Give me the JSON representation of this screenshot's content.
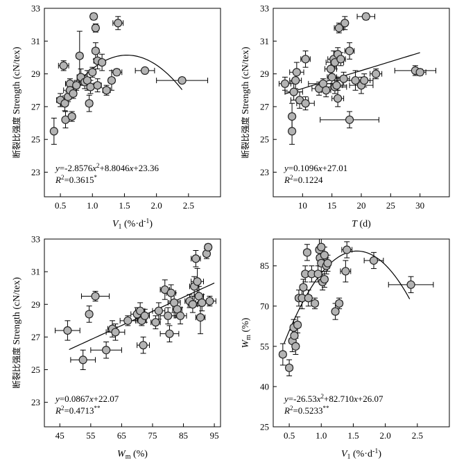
{
  "style": {
    "marker_fill": "#b3b3b3",
    "marker_stroke": "#222222",
    "line_color": "#000000"
  },
  "chart_data": [
    {
      "id": "a",
      "type": "scatter",
      "xlabel": {
        "main": "V",
        "sub": "1",
        "unit": " (%·d",
        "sup": "-1",
        "close": ")"
      },
      "ylabel": {
        "cn": "断裂比强度",
        "en": " Strength (cN/tex)"
      },
      "xlim": [
        0.25,
        3.0
      ],
      "ylim": [
        21.5,
        33.0
      ],
      "xticks": [
        0.5,
        1.0,
        1.5,
        2.0,
        2.5
      ],
      "xtick_labels": [
        "0.5",
        "1.0",
        "1.5",
        "2.0",
        "2.5"
      ],
      "yticks": [
        23,
        25,
        27,
        29,
        31,
        33
      ],
      "ytick_labels": [
        "23",
        "25",
        "27",
        "29",
        "31",
        "33"
      ],
      "equation_lines": [
        [
          {
            "t": "y",
            "i": true
          },
          {
            "t": "=-2.8576"
          },
          {
            "t": "x",
            "i": true
          },
          {
            "t": "2",
            "sup": true
          },
          {
            "t": "+8.8046"
          },
          {
            "t": "x",
            "i": true
          },
          {
            "t": "+23.36"
          }
        ],
        [
          {
            "t": "R",
            "i": true
          },
          {
            "t": "2",
            "sup": true
          },
          {
            "t": "=0.3615"
          },
          {
            "t": "*",
            "sup": true
          }
        ]
      ],
      "fit": {
        "kind": "poly2",
        "coef": [
          23.36,
          8.8046,
          -2.8576
        ],
        "x_range": [
          0.5,
          2.4
        ]
      },
      "points": [
        {
          "x": 0.4,
          "y": 25.5,
          "ex": 0.0,
          "ey": 0.8
        },
        {
          "x": 0.5,
          "y": 27.4,
          "ex": 0.06,
          "ey": 0.4
        },
        {
          "x": 0.55,
          "y": 29.5,
          "ex": 0.08,
          "ey": 0.3
        },
        {
          "x": 0.57,
          "y": 27.2,
          "ex": 0.05,
          "ey": 0.45
        },
        {
          "x": 0.58,
          "y": 26.2,
          "ex": 0.0,
          "ey": 0.5
        },
        {
          "x": 0.62,
          "y": 27.6,
          "ex": 0.05,
          "ey": 0.3
        },
        {
          "x": 0.65,
          "y": 28.4,
          "ex": 0.07,
          "ey": 0.3
        },
        {
          "x": 0.65,
          "y": 28.0,
          "ex": 0.1,
          "ey": 0.4
        },
        {
          "x": 0.68,
          "y": 26.4,
          "ex": 0.05,
          "ey": 0.3
        },
        {
          "x": 0.7,
          "y": 27.8,
          "ex": 0.05,
          "ey": 0.3
        },
        {
          "x": 0.75,
          "y": 28.3,
          "ex": 0.05,
          "ey": 0.3
        },
        {
          "x": 0.8,
          "y": 30.1,
          "ex": 0.05,
          "ey": 1.5
        },
        {
          "x": 0.82,
          "y": 28.8,
          "ex": 0.06,
          "ey": 0.5
        },
        {
          "x": 0.88,
          "y": 28.5,
          "ex": 0.08,
          "ey": 0.4
        },
        {
          "x": 0.92,
          "y": 28.6,
          "ex": 0.05,
          "ey": 0.6
        },
        {
          "x": 0.95,
          "y": 27.2,
          "ex": 0.05,
          "ey": 0.5
        },
        {
          "x": 0.97,
          "y": 28.2,
          "ex": 0.05,
          "ey": 0.4
        },
        {
          "x": 1.0,
          "y": 29.1,
          "ex": 0.05,
          "ey": 0.3
        },
        {
          "x": 1.02,
          "y": 32.5,
          "ex": 0.05,
          "ey": 0.2
        },
        {
          "x": 1.05,
          "y": 31.8,
          "ex": 0.05,
          "ey": 0.25
        },
        {
          "x": 1.05,
          "y": 30.4,
          "ex": 0.05,
          "ey": 0.5
        },
        {
          "x": 1.08,
          "y": 29.8,
          "ex": 0.06,
          "ey": 0.5
        },
        {
          "x": 1.08,
          "y": 28.3,
          "ex": 0.06,
          "ey": 0.4
        },
        {
          "x": 1.15,
          "y": 29.7,
          "ex": 0.05,
          "ey": 0.5
        },
        {
          "x": 1.22,
          "y": 28.0,
          "ex": 0.06,
          "ey": 0.3
        },
        {
          "x": 1.3,
          "y": 28.6,
          "ex": 0.05,
          "ey": 0.6
        },
        {
          "x": 1.38,
          "y": 29.1,
          "ex": 0.08,
          "ey": 0.2
        },
        {
          "x": 1.4,
          "y": 32.1,
          "ex": 0.08,
          "ey": 0.4
        },
        {
          "x": 1.82,
          "y": 29.2,
          "ex": 0.15,
          "ey": 0.15
        },
        {
          "x": 2.4,
          "y": 28.6,
          "ex": 0.4,
          "ey": 0.0
        }
      ]
    },
    {
      "id": "b",
      "type": "scatter",
      "xlabel": {
        "main": "T",
        "sub": "",
        "unit": " (d",
        "sup": "",
        "close": ")"
      },
      "ylabel": {
        "cn": "断裂比强度",
        "en": " Strength (cN/tex)"
      },
      "xlim": [
        5.0,
        35.0
      ],
      "ylim": [
        21.5,
        33.0
      ],
      "xticks": [
        10,
        15,
        20,
        25,
        30
      ],
      "xtick_labels": [
        "10",
        "15",
        "20",
        "25",
        "30"
      ],
      "yticks": [
        23,
        25,
        27,
        29,
        31,
        33
      ],
      "ytick_labels": [
        "23",
        "25",
        "27",
        "29",
        "31",
        "33"
      ],
      "equation_lines": [
        [
          {
            "t": "y",
            "i": true
          },
          {
            "t": "=0.1096"
          },
          {
            "t": "x",
            "i": true
          },
          {
            "t": "+27.01"
          }
        ],
        [
          {
            "t": "R",
            "i": true
          },
          {
            "t": "2",
            "sup": true
          },
          {
            "t": "=0.1224"
          }
        ]
      ],
      "fit": {
        "kind": "poly2",
        "coef": [
          27.01,
          0.1096,
          0
        ],
        "x_range": [
          7.0,
          30.0
        ]
      },
      "points": [
        {
          "x": 7.0,
          "y": 28.4,
          "ex": 1.0,
          "ey": 0.4
        },
        {
          "x": 8.2,
          "y": 26.4,
          "ex": 0.5,
          "ey": 0.8
        },
        {
          "x": 8.2,
          "y": 25.5,
          "ex": 0.5,
          "ey": 0.8
        },
        {
          "x": 8.5,
          "y": 27.9,
          "ex": 1.5,
          "ey": 0.5
        },
        {
          "x": 8.8,
          "y": 28.6,
          "ex": 1.0,
          "ey": 0.5
        },
        {
          "x": 9.0,
          "y": 29.1,
          "ex": 1.2,
          "ey": 0.6
        },
        {
          "x": 9.5,
          "y": 27.4,
          "ex": 1.5,
          "ey": 0.5
        },
        {
          "x": 10.5,
          "y": 27.2,
          "ex": 1.5,
          "ey": 0.4
        },
        {
          "x": 10.5,
          "y": 29.9,
          "ex": 0.8,
          "ey": 0.5
        },
        {
          "x": 12.8,
          "y": 28.1,
          "ex": 1.2,
          "ey": 0.4
        },
        {
          "x": 13.5,
          "y": 28.4,
          "ex": 2.5,
          "ey": 0.3
        },
        {
          "x": 14.0,
          "y": 28.0,
          "ex": 0.8,
          "ey": 0.4
        },
        {
          "x": 14.8,
          "y": 29.3,
          "ex": 1.0,
          "ey": 0.6
        },
        {
          "x": 15.0,
          "y": 28.8,
          "ex": 0.8,
          "ey": 0.4
        },
        {
          "x": 15.3,
          "y": 29.9,
          "ex": 1.0,
          "ey": 0.5
        },
        {
          "x": 15.5,
          "y": 28.2,
          "ex": 2.0,
          "ey": 0.4
        },
        {
          "x": 15.5,
          "y": 29.7,
          "ex": 1.5,
          "ey": 0.4
        },
        {
          "x": 15.8,
          "y": 28.3,
          "ex": 1.0,
          "ey": 0.3
        },
        {
          "x": 16.0,
          "y": 27.5,
          "ex": 1.0,
          "ey": 0.5
        },
        {
          "x": 16.0,
          "y": 30.2,
          "ex": 0.5,
          "ey": 0.4
        },
        {
          "x": 16.2,
          "y": 31.8,
          "ex": 0.8,
          "ey": 0.3
        },
        {
          "x": 16.5,
          "y": 29.9,
          "ex": 0.8,
          "ey": 0.4
        },
        {
          "x": 17.0,
          "y": 28.7,
          "ex": 1.0,
          "ey": 0.4
        },
        {
          "x": 17.2,
          "y": 32.1,
          "ex": 0.5,
          "ey": 0.4
        },
        {
          "x": 18.0,
          "y": 30.4,
          "ex": 0.8,
          "ey": 0.5
        },
        {
          "x": 18.0,
          "y": 26.2,
          "ex": 5.0,
          "ey": 0.5
        },
        {
          "x": 19.0,
          "y": 28.6,
          "ex": 3.0,
          "ey": 0.6
        },
        {
          "x": 20.0,
          "y": 28.3,
          "ex": 2.0,
          "ey": 0.5
        },
        {
          "x": 20.5,
          "y": 28.6,
          "ex": 1.0,
          "ey": 0.4
        },
        {
          "x": 20.8,
          "y": 32.5,
          "ex": 1.5,
          "ey": 0.2
        },
        {
          "x": 22.5,
          "y": 29.0,
          "ex": 1.0,
          "ey": 0.3
        },
        {
          "x": 29.2,
          "y": 29.2,
          "ex": 3.5,
          "ey": 0.3
        },
        {
          "x": 30.0,
          "y": 29.1,
          "ex": 1.0,
          "ey": 0.2
        }
      ]
    },
    {
      "id": "c",
      "type": "scatter",
      "xlabel": {
        "main": "W",
        "sub": "m",
        "unit": " (%",
        "sup": "",
        "close": ")"
      },
      "ylabel": {
        "cn": "断裂比强度",
        "en": " Strength (cN/tex)"
      },
      "xlim": [
        40,
        97
      ],
      "ylim": [
        21.5,
        33.0
      ],
      "xticks": [
        45,
        55,
        65,
        75,
        85,
        95
      ],
      "xtick_labels": [
        "45",
        "55",
        "65",
        "75",
        "85",
        "95"
      ],
      "yticks": [
        23,
        25,
        27,
        29,
        31,
        33
      ],
      "ytick_labels": [
        "23",
        "25",
        "27",
        "29",
        "31",
        "33"
      ],
      "equation_lines": [
        [
          {
            "t": "y",
            "i": true
          },
          {
            "t": "=0.0867"
          },
          {
            "t": "x",
            "i": true
          },
          {
            "t": "+22.07"
          }
        ],
        [
          {
            "t": "R",
            "i": true
          },
          {
            "t": "2",
            "sup": true
          },
          {
            "t": "=0.4713"
          },
          {
            "t": "**",
            "sup": true
          }
        ]
      ],
      "fit": {
        "kind": "poly2",
        "coef": [
          22.07,
          0.0867,
          0
        ],
        "x_range": [
          48.0,
          95.0
        ]
      },
      "points": [
        {
          "x": 47.5,
          "y": 27.4,
          "ex": 4.0,
          "ey": 0.6
        },
        {
          "x": 52.5,
          "y": 25.6,
          "ex": 4.0,
          "ey": 0.6
        },
        {
          "x": 54.5,
          "y": 28.4,
          "ex": 1.0,
          "ey": 0.5
        },
        {
          "x": 56.5,
          "y": 29.5,
          "ex": 4.5,
          "ey": 0.3
        },
        {
          "x": 60.0,
          "y": 26.2,
          "ex": 5.0,
          "ey": 0.5
        },
        {
          "x": 62.0,
          "y": 27.5,
          "ex": 1.5,
          "ey": 0.5
        },
        {
          "x": 63.0,
          "y": 27.3,
          "ex": 3.0,
          "ey": 0.5
        },
        {
          "x": 67.0,
          "y": 28.0,
          "ex": 2.5,
          "ey": 0.3
        },
        {
          "x": 70.0,
          "y": 28.4,
          "ex": 2.0,
          "ey": 0.4
        },
        {
          "x": 71.0,
          "y": 28.6,
          "ex": 1.5,
          "ey": 0.5
        },
        {
          "x": 71.5,
          "y": 28.0,
          "ex": 1.5,
          "ey": 0.3
        },
        {
          "x": 72.0,
          "y": 26.5,
          "ex": 2.0,
          "ey": 0.5
        },
        {
          "x": 72.5,
          "y": 28.3,
          "ex": 1.5,
          "ey": 0.4
        },
        {
          "x": 76.0,
          "y": 27.9,
          "ex": 1.5,
          "ey": 0.4
        },
        {
          "x": 77.0,
          "y": 28.6,
          "ex": 2.0,
          "ey": 0.5
        },
        {
          "x": 79.0,
          "y": 29.9,
          "ex": 1.5,
          "ey": 0.6
        },
        {
          "x": 80.0,
          "y": 28.3,
          "ex": 2.5,
          "ey": 0.5
        },
        {
          "x": 80.5,
          "y": 27.2,
          "ex": 3.0,
          "ey": 0.5
        },
        {
          "x": 81.0,
          "y": 29.7,
          "ex": 1.5,
          "ey": 0.5
        },
        {
          "x": 82.0,
          "y": 29.1,
          "ex": 2.0,
          "ey": 0.6
        },
        {
          "x": 83.0,
          "y": 28.7,
          "ex": 1.5,
          "ey": 0.5
        },
        {
          "x": 84.0,
          "y": 28.3,
          "ex": 2.0,
          "ey": 0.5
        },
        {
          "x": 87.0,
          "y": 29.2,
          "ex": 1.5,
          "ey": 0.4
        },
        {
          "x": 88.0,
          "y": 29.0,
          "ex": 1.5,
          "ey": 0.5
        },
        {
          "x": 88.5,
          "y": 30.1,
          "ex": 1.5,
          "ey": 0.6
        },
        {
          "x": 89.0,
          "y": 31.8,
          "ex": 1.5,
          "ey": 0.5
        },
        {
          "x": 89.5,
          "y": 30.4,
          "ex": 2.0,
          "ey": 0.8
        },
        {
          "x": 90.0,
          "y": 29.5,
          "ex": 1.5,
          "ey": 0.6
        },
        {
          "x": 90.5,
          "y": 28.2,
          "ex": 1.5,
          "ey": 1.0
        },
        {
          "x": 91.0,
          "y": 29.1,
          "ex": 2.0,
          "ey": 0.5
        },
        {
          "x": 92.5,
          "y": 32.1,
          "ex": 1.0,
          "ey": 0.3
        },
        {
          "x": 93.0,
          "y": 32.5,
          "ex": 1.0,
          "ey": 0.2
        },
        {
          "x": 93.5,
          "y": 29.2,
          "ex": 2.0,
          "ey": 0.3
        }
      ]
    },
    {
      "id": "d",
      "type": "scatter",
      "xlabel": {
        "main": "V",
        "sub": "1",
        "unit": " (%·d",
        "sup": "-1",
        "close": ")"
      },
      "ylabel": {
        "main": "W",
        "sub": "m",
        "unit": " (%)"
      },
      "xlim": [
        0.25,
        3.0
      ],
      "ylim": [
        25,
        95
      ],
      "xticks": [
        0.5,
        1.0,
        1.5,
        2.0,
        2.5
      ],
      "xtick_labels": [
        "0.5",
        "1.0",
        "1.5",
        "2.0",
        "2.5"
      ],
      "yticks": [
        25,
        40,
        55,
        70,
        85
      ],
      "ytick_labels": [
        "25",
        "40",
        "55",
        "70",
        "85"
      ],
      "equation_lines": [
        [
          {
            "t": "y",
            "i": true
          },
          {
            "t": "=-26.53"
          },
          {
            "t": "x",
            "i": true
          },
          {
            "t": "2",
            "sup": true
          },
          {
            "t": "+82.710"
          },
          {
            "t": "x",
            "i": true
          },
          {
            "t": "+26.07"
          }
        ],
        [
          {
            "t": "R",
            "i": true
          },
          {
            "t": "2",
            "sup": true
          },
          {
            "t": "=0.5233"
          },
          {
            "t": "**",
            "sup": true
          }
        ]
      ],
      "fit": {
        "kind": "poly2",
        "coef": [
          26.07,
          82.71,
          -26.53
        ],
        "x_range": [
          0.42,
          2.38
        ]
      },
      "points": [
        {
          "x": 0.4,
          "y": 52.0,
          "ex": 0.05,
          "ey": 4.0
        },
        {
          "x": 0.5,
          "y": 47.0,
          "ex": 0.05,
          "ey": 3.0
        },
        {
          "x": 0.55,
          "y": 57.0,
          "ex": 0.05,
          "ey": 4.0
        },
        {
          "x": 0.57,
          "y": 62.0,
          "ex": 0.05,
          "ey": 3.0
        },
        {
          "x": 0.58,
          "y": 59.0,
          "ex": 0.05,
          "ey": 3.0
        },
        {
          "x": 0.6,
          "y": 55.0,
          "ex": 0.05,
          "ey": 3.0
        },
        {
          "x": 0.63,
          "y": 63.0,
          "ex": 0.05,
          "ey": 3.0
        },
        {
          "x": 0.65,
          "y": 73.0,
          "ex": 0.05,
          "ey": 3.0
        },
        {
          "x": 0.7,
          "y": 73.0,
          "ex": 0.05,
          "ey": 4.0
        },
        {
          "x": 0.72,
          "y": 77.0,
          "ex": 0.05,
          "ey": 3.0
        },
        {
          "x": 0.75,
          "y": 82.0,
          "ex": 0.05,
          "ey": 3.0
        },
        {
          "x": 0.78,
          "y": 90.0,
          "ex": 0.05,
          "ey": 3.0
        },
        {
          "x": 0.8,
          "y": 73.0,
          "ex": 0.05,
          "ey": 3.0
        },
        {
          "x": 0.85,
          "y": 82.0,
          "ex": 0.08,
          "ey": 3.0
        },
        {
          "x": 0.9,
          "y": 71.0,
          "ex": 0.05,
          "ey": 2.0
        },
        {
          "x": 0.95,
          "y": 82.0,
          "ex": 0.05,
          "ey": 3.0
        },
        {
          "x": 0.97,
          "y": 91.0,
          "ex": 0.05,
          "ey": 4.0
        },
        {
          "x": 0.98,
          "y": 88.0,
          "ex": 0.05,
          "ey": 3.0
        },
        {
          "x": 1.0,
          "y": 86.0,
          "ex": 0.05,
          "ey": 3.0
        },
        {
          "x": 1.0,
          "y": 92.0,
          "ex": 0.05,
          "ey": 3.0
        },
        {
          "x": 1.02,
          "y": 79.0,
          "ex": 0.05,
          "ey": 3.0
        },
        {
          "x": 1.05,
          "y": 80.0,
          "ex": 0.05,
          "ey": 3.0
        },
        {
          "x": 1.05,
          "y": 89.0,
          "ex": 0.05,
          "ey": 3.0
        },
        {
          "x": 1.08,
          "y": 85.0,
          "ex": 0.05,
          "ey": 3.0
        },
        {
          "x": 1.1,
          "y": 86.0,
          "ex": 0.05,
          "ey": 3.0
        },
        {
          "x": 1.22,
          "y": 68.0,
          "ex": 0.05,
          "ey": 3.0
        },
        {
          "x": 1.28,
          "y": 71.0,
          "ex": 0.05,
          "ey": 2.0
        },
        {
          "x": 1.38,
          "y": 83.0,
          "ex": 0.08,
          "ey": 4.0
        },
        {
          "x": 1.4,
          "y": 91.0,
          "ex": 0.08,
          "ey": 3.0
        },
        {
          "x": 1.82,
          "y": 87.0,
          "ex": 0.15,
          "ey": 3.0
        },
        {
          "x": 2.4,
          "y": 78.0,
          "ex": 0.35,
          "ey": 3.0
        }
      ]
    }
  ]
}
